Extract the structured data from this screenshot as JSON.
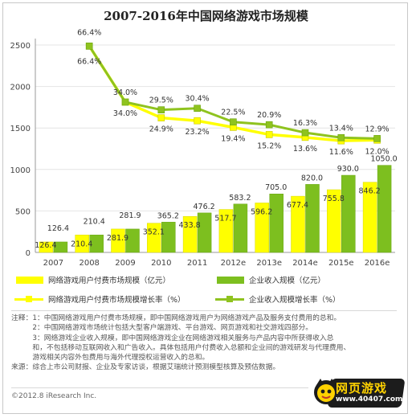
{
  "title": "2007-2016年中国网络游戏市场规模",
  "colors": {
    "bar_user": "#ffff00",
    "bar_revenue": "#7dbf1f",
    "line_user": "#ffff00",
    "line_revenue": "#8fc31f",
    "axis": "#999999",
    "grid": "#e4e4e4"
  },
  "chart_data": {
    "type": "bar",
    "categories": [
      "2007",
      "2008",
      "2009",
      "2010",
      "2011",
      "2012e",
      "2013e",
      "2014e",
      "2015e",
      "2016e"
    ],
    "ylim": [
      0,
      2500
    ],
    "yticks": [
      0,
      500,
      1000,
      1500,
      2000,
      2500
    ],
    "series": [
      {
        "name": "网络游戏用户付费市场规模（亿元）",
        "kind": "bar",
        "values": [
          126.4,
          210.4,
          281.9,
          352.1,
          433.8,
          517.7,
          596.2,
          677.4,
          755.8,
          846.2
        ],
        "labels": [
          "126.4",
          "210.4",
          "281.9",
          "352.1",
          "433.8",
          "517.7",
          "596.2",
          "677.4",
          "755.8",
          "846.2"
        ]
      },
      {
        "name": "企业收入规模（亿元）",
        "kind": "bar",
        "values": [
          126.4,
          210.4,
          281.9,
          365.2,
          476.2,
          583.2,
          705.0,
          820.0,
          930.0,
          1050.0
        ],
        "labels": [
          "126.4",
          "210.4",
          "281.9",
          "365.2",
          "476.2",
          "583.2",
          "705.0",
          "820.0",
          "930.0",
          "1050.0"
        ]
      },
      {
        "name": "网络游戏用户付费市场规模增长率（%）",
        "kind": "line",
        "values": [
          null,
          66.4,
          34.0,
          24.9,
          23.2,
          19.4,
          15.2,
          13.6,
          11.6,
          12.0
        ],
        "labels": [
          null,
          "66.4%",
          "34.0%",
          "24.9%",
          "23.2%",
          "19.4%",
          "15.2%",
          "13.6%",
          "11.6%",
          "12.0%"
        ]
      },
      {
        "name": "企业收入规模增长率（%）",
        "kind": "line",
        "values": [
          null,
          66.4,
          34.0,
          29.5,
          30.4,
          22.5,
          20.9,
          16.3,
          13.4,
          12.9
        ],
        "labels": [
          null,
          "66.4%",
          "34.0%",
          "29.5%",
          "30.4%",
          "22.5%",
          "20.9%",
          "16.3%",
          "13.4%",
          "12.9%"
        ]
      }
    ]
  },
  "legend": [
    "网络游戏用户付费市场规模（亿元）",
    "企业收入规模（亿元）",
    "网络游戏用户付费市场规模增长率（%）",
    "企业收入规模增长率（%）"
  ],
  "notes": [
    "注释：1：中国网络游戏用户付费市场规模，即中国网络游戏用户为网络游戏产品及服务支付费用的总和。",
    "　　　2：中国网络游戏市场统计包括大型客户端游戏、平台游戏、网页游戏和社交游戏四部分。",
    "　　　3：网络游戏企业收入规模，即中国网络游戏企业在网络游戏相关服务与产品内容中所获得收入总",
    "　　　和，不包括移动互联网收入和广告收入。具体包括用户付费收入总额和企业间的游戏研发与代理费用、",
    "　　　游戏相关内容外包费用与海外代理授权运营收入的总和。",
    "来源：综合上市公司财报、企业及专家访谈，根据艾瑞统计预测模型核算及预估数据。"
  ],
  "footer": "©2012.8 iResearch Inc.",
  "watermark": {
    "title": "网页游戏",
    "url": "www.40407.com"
  }
}
